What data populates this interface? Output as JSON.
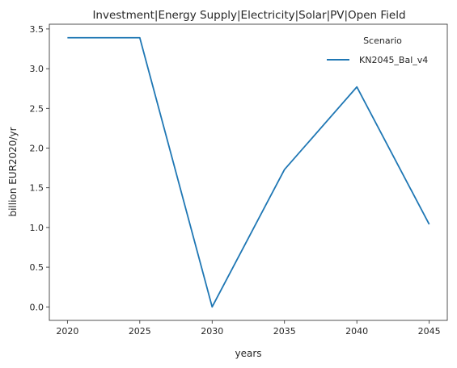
{
  "chart_data": {
    "type": "line",
    "title": "Investment|Energy Supply|Electricity|Solar|PV|Open Field",
    "xlabel": "years",
    "ylabel": "billion EUR2020/yr",
    "x": [
      2020,
      2025,
      2030,
      2035,
      2040,
      2045
    ],
    "xticks": [
      "2020",
      "2025",
      "2030",
      "2035",
      "2040",
      "2045"
    ],
    "yticks": [
      "0.0",
      "0.5",
      "1.0",
      "1.5",
      "2.0",
      "2.5",
      "3.0",
      "3.5"
    ],
    "xlim": [
      2018.75,
      2046.25
    ],
    "ylim": [
      -0.17,
      3.56
    ],
    "grid": false,
    "legend": {
      "title": "Scenario",
      "placement": "top-right"
    },
    "series": [
      {
        "name": "KN2045_Bal_v4",
        "color": "#1f77b4",
        "values": [
          3.39,
          3.39,
          0.0,
          1.73,
          2.77,
          1.04
        ]
      }
    ]
  }
}
